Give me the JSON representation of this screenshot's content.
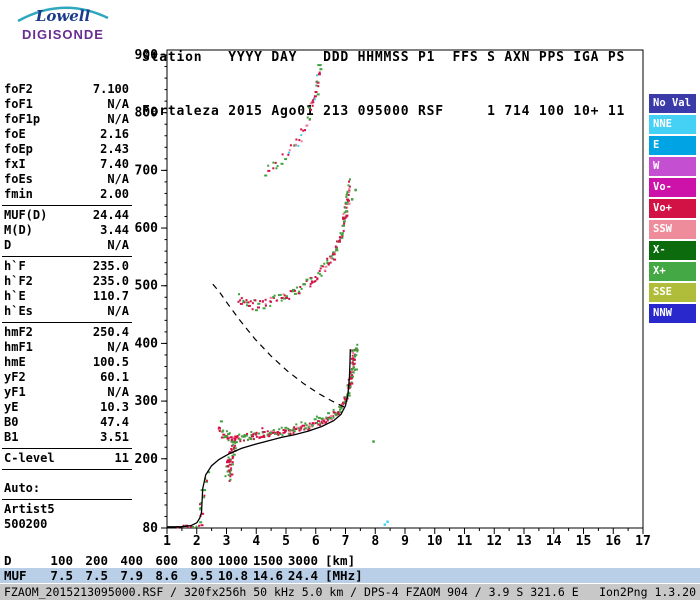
{
  "logo": {
    "lowell": "Lowell",
    "digisonde": "DIGISONDE"
  },
  "header": {
    "line1": "Station   YYYY DAY   DDD HHMMSS P1  FFS S AXN PPS IGA PS",
    "line2": "Fortaleza 2015 Ago01 213 095000 RSF     1 714 100 10+ 11"
  },
  "params": {
    "groups": [
      {
        "rows": [
          [
            "foF2",
            "7.100"
          ],
          [
            "foF1",
            "N/A"
          ],
          [
            "foF1p",
            "N/A"
          ],
          [
            "foE",
            "2.16"
          ],
          [
            "foEp",
            "2.43"
          ],
          [
            "fxI",
            "7.40"
          ],
          [
            "foEs",
            "N/A"
          ],
          [
            "fmin",
            "2.00"
          ]
        ],
        "divider_after": true
      },
      {
        "rows": [
          [
            "MUF(D)",
            "24.44"
          ],
          [
            "M(D)",
            "3.44"
          ],
          [
            "D",
            "N/A"
          ]
        ],
        "divider_after": true
      },
      {
        "rows": [
          [
            "h`F",
            "235.0"
          ],
          [
            "h`F2",
            "235.0"
          ],
          [
            "h`E",
            "110.7"
          ],
          [
            "h`Es",
            "N/A"
          ]
        ],
        "divider_after": true
      },
      {
        "rows": [
          [
            "hmF2",
            "250.4"
          ],
          [
            "hmF1",
            "N/A"
          ],
          [
            "hmE",
            "100.5"
          ],
          [
            "yF2",
            "60.1"
          ],
          [
            "yF1",
            "N/A"
          ],
          [
            "yE",
            "10.3"
          ],
          [
            "B0",
            "47.4"
          ],
          [
            "B1",
            "3.51"
          ]
        ],
        "divider_after": true
      },
      {
        "rows": [
          [
            "C-level",
            "11"
          ]
        ],
        "divider_after": true,
        "gap_after": true
      },
      {
        "rows": [
          [
            "Auto:",
            ""
          ]
        ],
        "divider_after": true
      },
      {
        "rows": [
          [
            "Artist5",
            ""
          ],
          [
            "500200",
            ""
          ]
        ],
        "divider_after": false
      }
    ]
  },
  "legend": {
    "items": [
      {
        "label": "No Val",
        "color": "#3a3aa8"
      },
      {
        "label": "NNE",
        "color": "#45d0f5"
      },
      {
        "label": "E",
        "color": "#00a4e4"
      },
      {
        "label": "W",
        "color": "#c44fd0"
      },
      {
        "label": "Vo-",
        "color": "#cc12a8"
      },
      {
        "label": "Vo+",
        "color": "#d21144"
      },
      {
        "label": "SSW",
        "color": "#ee8c9c"
      },
      {
        "label": "X-",
        "color": "#0c6b0c"
      },
      {
        "label": "X+",
        "color": "#44a844"
      },
      {
        "label": "SSE",
        "color": "#b0bd3a"
      },
      {
        "label": "NNW",
        "color": "#2828cc"
      }
    ]
  },
  "muf_table": {
    "rows": [
      {
        "label": "D",
        "values": [
          "100",
          "200",
          "400",
          "600",
          "800",
          "1000",
          "1500",
          "3000"
        ],
        "unit": "[km]",
        "highlight": false
      },
      {
        "label": "MUF",
        "values": [
          "7.5",
          "7.5",
          "7.9",
          "8.6",
          "9.5",
          "10.8",
          "14.6",
          "24.4"
        ],
        "unit": "[MHz]",
        "highlight": true
      }
    ]
  },
  "status": {
    "left": "FZAOM_2015213095000.RSF / 320fx256h 50 kHz 5.0 km / DPS-4 FZAOM 904 / 3.9 S 321.6 E",
    "right": "Ion2Png 1.3.20"
  },
  "colors": {
    "muf_highlight": "#b9cfe8",
    "status_bar_bg": "#c8c8c8",
    "trace_red": "#d21144",
    "trace_green": "#3da23d",
    "trace_pink": "#f080a0",
    "trace_cyan": "#45d0f5",
    "profile_line": "#000000"
  },
  "chart_data": {
    "type": "scatter",
    "title": "Fortaleza ionogram 2015 Ago01 213 095000",
    "x_axis": {
      "unit": "MHz",
      "min": 1,
      "max": 17,
      "major_ticks": [
        1,
        2,
        3,
        4,
        5,
        6,
        7,
        8,
        9,
        10,
        11,
        12,
        13,
        14,
        15,
        16,
        17
      ],
      "minor_step": 0.5
    },
    "y_axis": {
      "unit": "km",
      "min": 80,
      "max": 900,
      "major_ticks": [
        900,
        800,
        700,
        600,
        500,
        400,
        300,
        200,
        80
      ],
      "minor_step": 20
    },
    "traces": [
      {
        "name": "F 1-hop O-mode trace",
        "step": 1.8,
        "per": 2,
        "jitter": 3,
        "jx": 1.5,
        "colors": [
          [
            "#d21144",
            0.66
          ],
          [
            "#3da23d",
            0.2
          ],
          [
            "#f080a0",
            0.14
          ]
        ],
        "points": [
          [
            2.68,
            252
          ],
          [
            2.85,
            243
          ],
          [
            3.05,
            237
          ],
          [
            3.25,
            235
          ],
          [
            3.5,
            237
          ],
          [
            3.78,
            240
          ],
          [
            4.1,
            243
          ],
          [
            4.45,
            245
          ],
          [
            4.8,
            247
          ],
          [
            5.15,
            250
          ],
          [
            5.5,
            254
          ],
          [
            5.85,
            259
          ],
          [
            6.15,
            265
          ],
          [
            6.45,
            273
          ],
          [
            6.7,
            284
          ],
          [
            6.9,
            298
          ],
          [
            7.05,
            316
          ],
          [
            7.15,
            340
          ],
          [
            7.21,
            366
          ],
          [
            7.25,
            394
          ]
        ]
      },
      {
        "name": "F 1-hop X-mode fringe",
        "step": 2.6,
        "per": 1,
        "jitter": 4.5,
        "jx": 1.5,
        "colors": [
          [
            "#3da23d",
            0.85
          ],
          [
            "#d21144",
            0.15
          ]
        ],
        "points": [
          [
            2.75,
            259
          ],
          [
            3.0,
            247
          ],
          [
            3.3,
            241
          ],
          [
            3.62,
            243
          ],
          [
            3.98,
            247
          ],
          [
            4.35,
            250
          ],
          [
            4.72,
            252
          ],
          [
            5.1,
            255
          ],
          [
            5.48,
            259
          ],
          [
            5.85,
            264
          ],
          [
            6.2,
            271
          ],
          [
            6.52,
            280
          ],
          [
            6.8,
            293
          ],
          [
            7.0,
            310
          ],
          [
            7.17,
            336
          ],
          [
            7.3,
            368
          ],
          [
            7.38,
            398
          ]
        ]
      },
      {
        "name": "E-region trace",
        "step": 2.2,
        "per": 1,
        "jitter": 2,
        "jx": 1.5,
        "colors": [
          [
            "#d21144",
            0.5
          ],
          [
            "#3da23d",
            0.5
          ]
        ],
        "points": [
          [
            1.5,
            83
          ],
          [
            1.75,
            84
          ],
          [
            1.95,
            86
          ],
          [
            2.15,
            90
          ]
        ]
      },
      {
        "name": "E vertical scatter",
        "step": 3,
        "per": 1,
        "jitter": 3,
        "jx": 2,
        "colors": [
          [
            "#3da23d",
            0.78
          ],
          [
            "#d21144",
            0.22
          ]
        ],
        "points": [
          [
            2.05,
            96
          ],
          [
            2.1,
            108
          ],
          [
            2.14,
            122
          ],
          [
            2.18,
            138
          ],
          [
            2.22,
            152
          ]
        ]
      },
      {
        "name": "Es cluster",
        "step": 3,
        "per": 1,
        "jitter": 4,
        "jx": 2,
        "colors": [
          [
            "#3da23d",
            0.7
          ],
          [
            "#d21144",
            0.3
          ]
        ],
        "points": [
          [
            2.28,
            158
          ],
          [
            2.36,
            170
          ],
          [
            2.44,
            182
          ]
        ]
      },
      {
        "name": "F-trace retardation strip",
        "step": 1.5,
        "per": 2,
        "jitter": 4,
        "jx": 3,
        "colors": [
          [
            "#d21144",
            0.5
          ],
          [
            "#3da23d",
            0.5
          ]
        ],
        "points": [
          [
            3.0,
            168
          ],
          [
            3.05,
            184
          ],
          [
            3.1,
            200
          ],
          [
            3.15,
            214
          ],
          [
            3.2,
            226
          ],
          [
            3.26,
            236
          ]
        ]
      },
      {
        "name": "F 2-hop trace",
        "step": 2.4,
        "per": 2,
        "jitter": 5,
        "jx": 1.5,
        "colors": [
          [
            "#d21144",
            0.52
          ],
          [
            "#3da23d",
            0.36
          ],
          [
            "#f080a0",
            0.12
          ]
        ],
        "points": [
          [
            3.38,
            482
          ],
          [
            3.55,
            475
          ],
          [
            3.75,
            470
          ],
          [
            4.0,
            468
          ],
          [
            4.25,
            471
          ],
          [
            4.55,
            476
          ],
          [
            4.85,
            482
          ],
          [
            5.15,
            489
          ],
          [
            5.45,
            497
          ],
          [
            5.75,
            507
          ],
          [
            6.05,
            520
          ],
          [
            6.3,
            535
          ],
          [
            6.55,
            554
          ],
          [
            6.75,
            578
          ],
          [
            6.9,
            606
          ],
          [
            7.0,
            638
          ],
          [
            7.07,
            668
          ],
          [
            7.11,
            684
          ]
        ]
      },
      {
        "name": "F 3-hop trace",
        "step": 2.4,
        "per": 1,
        "jitter": 5,
        "jx": 2,
        "colors": [
          [
            "#d21144",
            0.5
          ],
          [
            "#3da23d",
            0.3
          ],
          [
            "#f080a0",
            0.1
          ],
          [
            "#45d0f5",
            0.1
          ]
        ],
        "points": [
          [
            4.3,
            700
          ],
          [
            4.5,
            708
          ],
          [
            4.75,
            716
          ],
          [
            5.0,
            728
          ],
          [
            5.25,
            744
          ],
          [
            5.5,
            764
          ],
          [
            5.7,
            788
          ],
          [
            5.86,
            814
          ],
          [
            5.97,
            842
          ],
          [
            6.05,
            868
          ],
          [
            6.09,
            892
          ]
        ]
      }
    ],
    "specks": [
      [
        8.28,
        88,
        "#45d0f5"
      ],
      [
        8.37,
        93,
        "#45d0f5"
      ],
      [
        7.18,
        652,
        "#3da23d"
      ],
      [
        7.3,
        668,
        "#3da23d"
      ],
      [
        1.32,
        82,
        "#d21144"
      ],
      [
        7.9,
        232,
        "#3da23d"
      ]
    ],
    "profile_solid": {
      "points": [
        [
          1.0,
          82
        ],
        [
          1.45,
          82
        ],
        [
          1.8,
          84
        ],
        [
          2.0,
          89
        ],
        [
          2.1,
          97
        ],
        [
          2.16,
          107
        ],
        [
          2.2,
          148
        ],
        [
          2.3,
          172
        ],
        [
          2.5,
          188
        ],
        [
          2.75,
          199
        ],
        [
          3.1,
          209
        ],
        [
          3.5,
          218
        ],
        [
          3.95,
          225
        ],
        [
          4.4,
          231
        ],
        [
          4.85,
          237
        ],
        [
          5.3,
          242
        ],
        [
          5.75,
          248
        ],
        [
          6.2,
          256
        ],
        [
          6.6,
          266
        ],
        [
          6.85,
          277
        ],
        [
          7.0,
          292
        ],
        [
          7.08,
          312
        ],
        [
          7.13,
          340
        ],
        [
          7.15,
          368
        ],
        [
          7.16,
          390
        ]
      ]
    },
    "profile_dashed": {
      "points": [
        [
          6.95,
          290
        ],
        [
          6.55,
          300
        ],
        [
          6.1,
          313
        ],
        [
          5.6,
          330
        ],
        [
          5.05,
          352
        ],
        [
          4.5,
          378
        ],
        [
          3.95,
          408
        ],
        [
          3.45,
          440
        ],
        [
          3.05,
          468
        ],
        [
          2.75,
          490
        ],
        [
          2.5,
          505
        ]
      ]
    }
  }
}
